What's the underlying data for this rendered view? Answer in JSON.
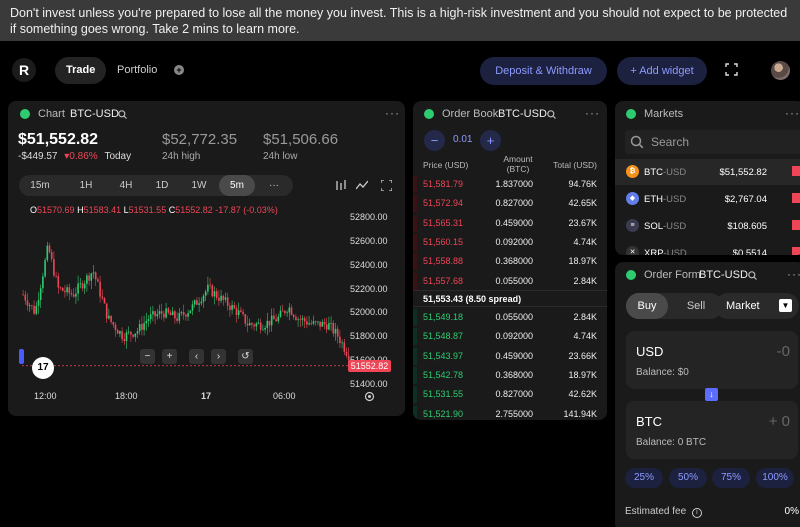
{
  "banner": "Don't invest unless you're prepared to lose all the money you invest. This is a high-risk investment and you should not expect to be protected if something goes wrong. Take 2 mins to learn more.",
  "nav": {
    "logo": "R",
    "trade": "Trade",
    "portfolio": "Portfolio",
    "plus": "+"
  },
  "actions": {
    "deposit": "Deposit & Withdraw",
    "widget": "+ Add widget"
  },
  "chart": {
    "title": "Chart",
    "pair": "BTC-USD",
    "price": "$51,552.82",
    "change_abs": "-$449.57",
    "change_pct": "0.86%",
    "change_label": "Today",
    "high": "$52,772.35",
    "high_label": "24h high",
    "low": "$51,506.66",
    "low_label": "24h low",
    "timeframes": [
      "15m",
      "1H",
      "4H",
      "1D",
      "1W",
      "5m",
      "···"
    ],
    "ohlc": {
      "o_l": "O",
      "o": "51570.69",
      "h_l": "H",
      "h": "51583.41",
      "l_l": "L",
      "l": "51531.55",
      "c_l": "C",
      "c": "51552.82",
      "chg": "-17.87 (-0.03%)"
    },
    "y_ticks": [
      "52800.00",
      "52600.00",
      "52400.00",
      "52200.00",
      "52000.00",
      "51800.00",
      "51600.00",
      "51400.00"
    ],
    "x_ticks": [
      "12:00",
      "18:00",
      "17",
      "06:00"
    ],
    "last_price_tag": "51552.82",
    "controls": [
      "−",
      "+",
      "‹",
      "›",
      "↺"
    ]
  },
  "chart_data": {
    "type": "candlestick",
    "ylim": [
      51400,
      52800
    ],
    "y_ticks": [
      52800,
      52600,
      52400,
      52200,
      52000,
      51800,
      51600,
      51400
    ],
    "x_ticks": [
      "12:00",
      "18:00",
      "17",
      "06:00"
    ],
    "last": 51552.82
  },
  "orderbook": {
    "title": "Order Book",
    "pair": "BTC-USD",
    "tick": "0.01",
    "headers": {
      "price": "Price (USD)",
      "amount": "Amount",
      "amount_unit": "(BTC)",
      "total": "Total (USD)"
    },
    "asks": [
      {
        "price": "51,581.79",
        "amount": "1.837000",
        "total": "94.76K"
      },
      {
        "price": "51,572.94",
        "amount": "0.827000",
        "total": "42.65K"
      },
      {
        "price": "51,565.31",
        "amount": "0.459000",
        "total": "23.67K"
      },
      {
        "price": "51,560.15",
        "amount": "0.092000",
        "total": "4.74K"
      },
      {
        "price": "51,558.88",
        "amount": "0.368000",
        "total": "18.97K"
      },
      {
        "price": "51,557.68",
        "amount": "0.055000",
        "total": "2.84K"
      }
    ],
    "spread": "51,553.43 (8.50 spread)",
    "bids": [
      {
        "price": "51,549.18",
        "amount": "0.055000",
        "total": "2.84K"
      },
      {
        "price": "51,548.87",
        "amount": "0.092000",
        "total": "4.74K"
      },
      {
        "price": "51,543.97",
        "amount": "0.459000",
        "total": "23.66K"
      },
      {
        "price": "51,542.78",
        "amount": "0.368000",
        "total": "18.97K"
      },
      {
        "price": "51,531.55",
        "amount": "0.827000",
        "total": "42.62K"
      },
      {
        "price": "51,521.90",
        "amount": "2.755000",
        "total": "141.94K"
      }
    ]
  },
  "markets": {
    "title": "Markets",
    "search_placeholder": "Search",
    "rows": [
      {
        "base": "BTC",
        "quote": "-USD",
        "price": "$51,552.82",
        "color": "#f7931a",
        "glyph": "₿"
      },
      {
        "base": "ETH",
        "quote": "-USD",
        "price": "$2,767.04",
        "color": "#627eea",
        "glyph": "◆"
      },
      {
        "base": "SOL",
        "quote": "-USD",
        "price": "$108.605",
        "color": "#3b3b4f",
        "glyph": "≡"
      },
      {
        "base": "XRP",
        "quote": "-USD",
        "price": "$0.5514",
        "color": "#333",
        "glyph": "✕"
      }
    ]
  },
  "orderform": {
    "title": "Order Form",
    "pair": "BTC-USD",
    "buy": "Buy",
    "sell": "Sell",
    "type": "Market",
    "usd": {
      "currency": "USD",
      "value": "-0",
      "balance": "Balance: $0"
    },
    "btc": {
      "currency": "BTC",
      "value": "+ 0",
      "balance": "Balance: 0 BTC"
    },
    "pcts": [
      "25%",
      "50%",
      "75%",
      "100%"
    ],
    "fee_label": "Estimated fee",
    "fee_value": "0%"
  },
  "colors": {
    "accent": "#8d9bff",
    "ask": "#ef4657",
    "bid": "#2ecc71"
  }
}
